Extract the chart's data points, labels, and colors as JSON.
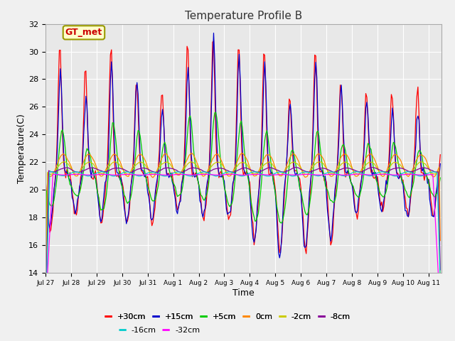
{
  "title": "Temperature Profile B",
  "xlabel": "Time",
  "ylabel": "Temperature(C)",
  "ylim": [
    14,
    32
  ],
  "xlim_start": 0,
  "xlim_end": 15.5,
  "bg_color": "#e8e8e8",
  "fig_bg": "#f0f0f0",
  "grid_color": "#ffffff",
  "series": [
    {
      "label": "+30cm",
      "color": "#ff0000",
      "lw": 0.9
    },
    {
      "label": "+15cm",
      "color": "#0000cc",
      "lw": 0.9
    },
    {
      "label": "+5cm",
      "color": "#00cc00",
      "lw": 0.9
    },
    {
      "label": "0cm",
      "color": "#ff8800",
      "lw": 0.9
    },
    {
      "label": "-2cm",
      "color": "#cccc00",
      "lw": 0.9
    },
    {
      "label": "-8cm",
      "color": "#880099",
      "lw": 0.9
    },
    {
      "label": "-16cm",
      "color": "#00cccc",
      "lw": 0.9
    },
    {
      "label": "-32cm",
      "color": "#ff00ff",
      "lw": 0.9
    }
  ],
  "xtick_labels": [
    "Jul 27",
    "Jul 28",
    "Jul 29",
    "Jul 30",
    "Jul 31",
    "Aug 1",
    "Aug 2",
    "Aug 3",
    "Aug 4",
    "Aug 5",
    "Aug 6",
    "Aug 7",
    "Aug 8",
    "Aug 9",
    "Aug 10",
    "Aug 11"
  ],
  "ytick_vals": [
    14,
    16,
    18,
    20,
    22,
    24,
    26,
    28,
    30,
    32
  ],
  "annotation": "GT_met",
  "ann_color": "#cc0000",
  "ann_bg": "#ffffcc",
  "ann_edge": "#999900",
  "peak_heights_30": [
    30.6,
    28.6,
    30.6,
    28.0,
    27.2,
    30.8,
    31.0,
    30.5,
    30.1,
    26.7,
    30.1,
    28.0,
    27.3,
    27.2,
    27.2
  ],
  "trough_depths_30": [
    17.0,
    18.2,
    17.5,
    17.5,
    17.5,
    18.5,
    18.0,
    17.8,
    16.3,
    15.3,
    15.5,
    16.0,
    18.0,
    18.5,
    18.2
  ],
  "peak_heights_15": [
    28.8,
    26.7,
    29.0,
    27.8,
    25.8,
    29.0,
    31.0,
    29.5,
    29.0,
    26.5,
    29.3,
    27.5,
    26.5,
    25.5,
    25.5
  ],
  "trough_depths_15": [
    17.3,
    18.5,
    17.8,
    17.8,
    17.8,
    18.5,
    18.2,
    18.0,
    16.0,
    15.2,
    15.8,
    16.3,
    18.2,
    18.5,
    18.0
  ],
  "peak_heights_5": [
    24.5,
    23.2,
    25.0,
    24.5,
    23.5,
    25.5,
    26.0,
    25.0,
    24.5,
    23.2,
    24.5,
    23.5,
    23.5,
    23.5,
    23.0
  ],
  "trough_depths_5": [
    18.8,
    19.5,
    18.5,
    19.0,
    19.2,
    19.5,
    19.2,
    18.8,
    17.8,
    17.5,
    18.2,
    19.0,
    19.5,
    19.5,
    19.5
  ]
}
